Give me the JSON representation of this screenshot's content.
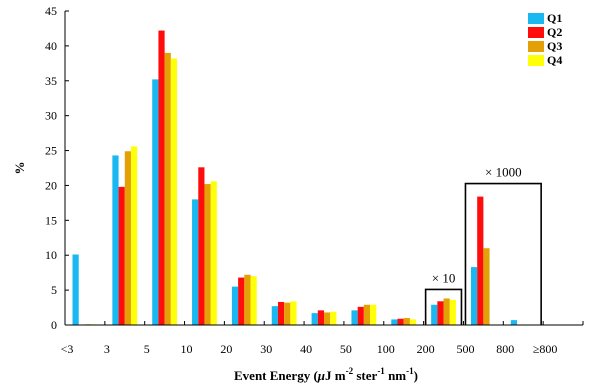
{
  "chart_data": {
    "type": "bar",
    "categories": [
      "<3",
      "3",
      "5",
      "10",
      "20",
      "30",
      "40",
      "50",
      "100",
      "200",
      "500",
      "800",
      "≥800"
    ],
    "series": [
      {
        "name": "Q1",
        "values": [
          10.1,
          24.3,
          35.2,
          18.0,
          5.5,
          2.7,
          1.7,
          2.1,
          0.8,
          2.9,
          8.3,
          0.7,
          0
        ]
      },
      {
        "name": "Q2",
        "values": [
          0,
          19.8,
          42.2,
          22.6,
          6.8,
          3.3,
          2.1,
          2.6,
          0.9,
          3.4,
          18.4,
          0,
          0
        ]
      },
      {
        "name": "Q3",
        "values": [
          0.1,
          24.9,
          39.0,
          20.2,
          7.2,
          3.2,
          1.8,
          2.9,
          1.0,
          3.8,
          11.0,
          0,
          0
        ]
      },
      {
        "name": "Q4",
        "values": [
          0.1,
          25.6,
          38.2,
          20.6,
          7.0,
          3.4,
          1.9,
          2.9,
          0.8,
          3.6,
          0,
          0,
          0
        ]
      }
    ],
    "colors": [
      "#1ab8f0",
      "#ff0d0d",
      "#e4a007",
      "#ffff0a"
    ],
    "xlabel_parts": [
      "Event Energy (",
      "μ",
      "J m",
      "-2",
      " ster",
      "-1",
      " nm",
      "-1",
      ")"
    ],
    "ylabel": "%",
    "ylim": [
      0,
      45
    ],
    "yticks": [
      0,
      5,
      10,
      15,
      20,
      25,
      30,
      35,
      40,
      45
    ],
    "legend_position": "top-right",
    "annotations": [
      {
        "text": "× 10",
        "categories": [
          9
        ]
      },
      {
        "text": "× 1000",
        "categories": [
          10,
          11
        ]
      }
    ]
  }
}
